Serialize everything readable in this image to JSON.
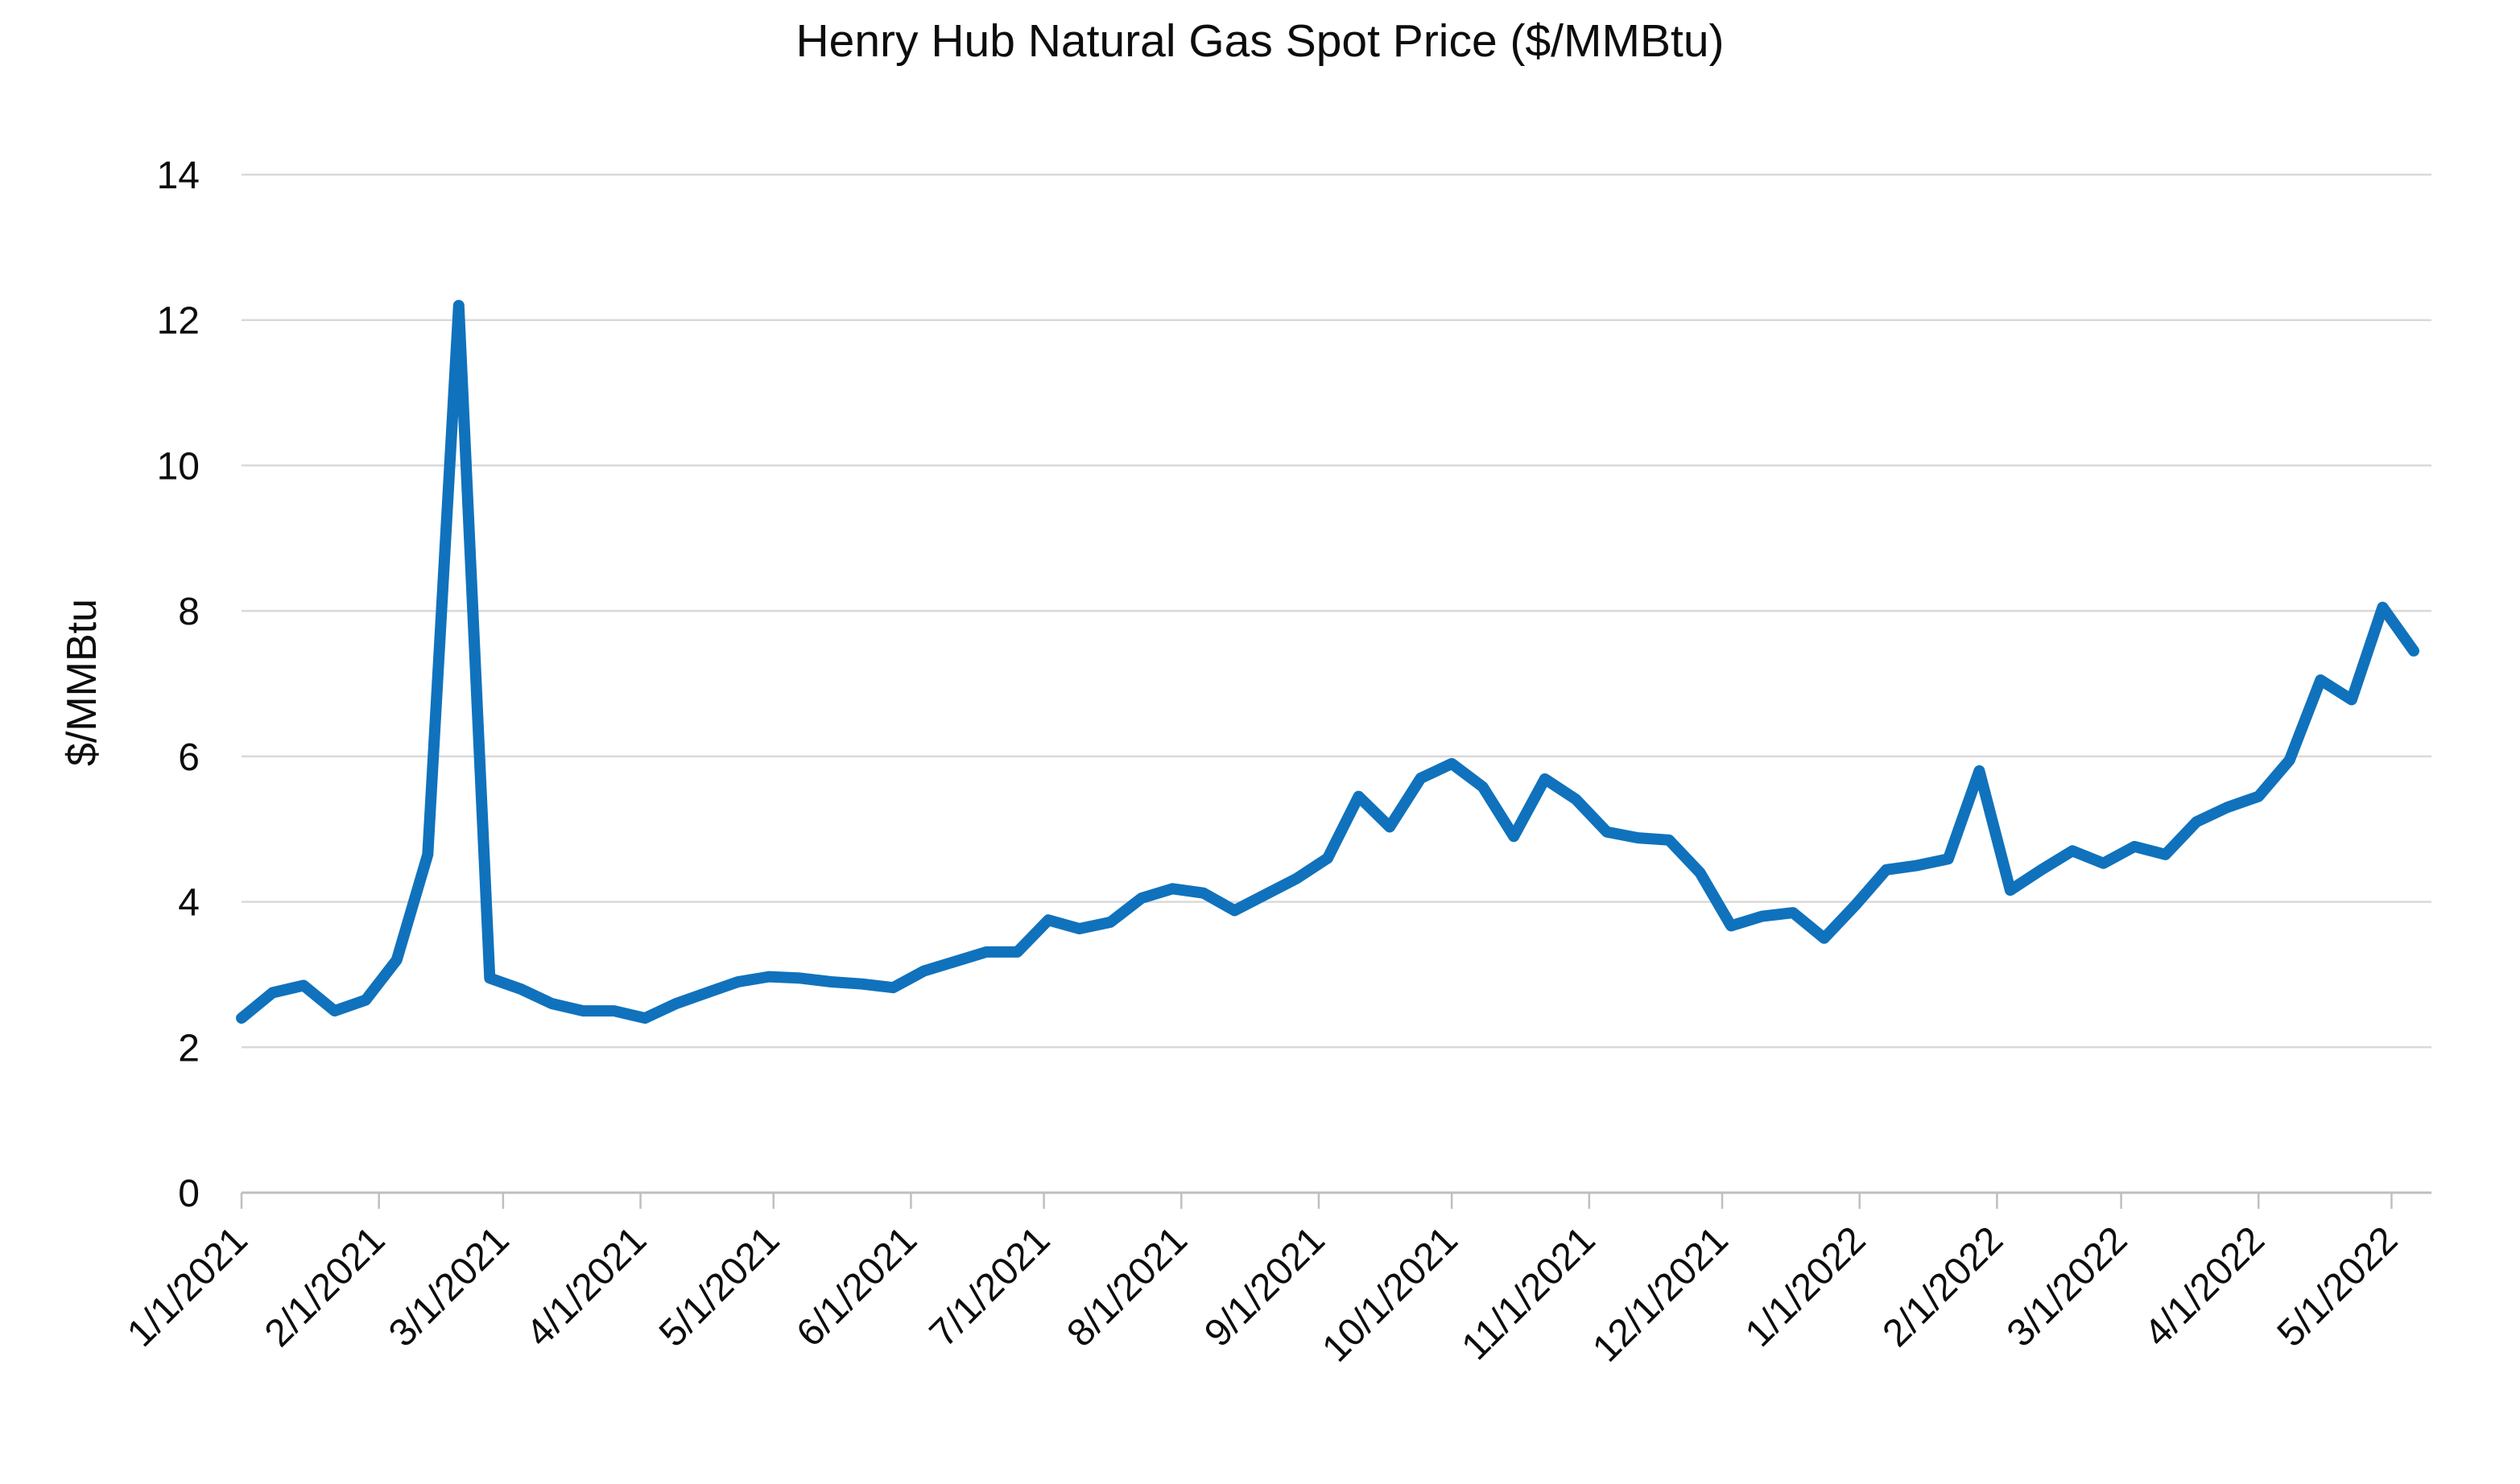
{
  "chart_data": {
    "type": "line",
    "title": "Henry Hub Natural Gas Spot Price ($/MMBtu)",
    "ylabel": "$/MMBtu",
    "xlabel": "",
    "ylim": [
      0,
      14
    ],
    "yticks": [
      0,
      2,
      4,
      6,
      8,
      10,
      12,
      14
    ],
    "grid": true,
    "legend_position": "none",
    "series_name": "Henry Hub natural gas spot price",
    "line_color": "#1072BC",
    "gridline_color": "#D9D9D9",
    "axis_color": "#BFBFBF",
    "xtick_labels": [
      "1/1/2021",
      "2/1/2021",
      "3/1/2021",
      "4/1/2021",
      "5/1/2021",
      "6/1/2021",
      "7/1/2021",
      "8/1/2021",
      "9/1/2021",
      "10/1/2021",
      "11/1/2021",
      "12/1/2021",
      "1/1/2022",
      "2/1/2022",
      "3/1/2022",
      "4/1/2022",
      "5/1/2022"
    ],
    "x": [
      "1/1/2021",
      "1/8/2021",
      "1/15/2021",
      "1/22/2021",
      "1/29/2021",
      "2/5/2021",
      "2/12/2021",
      "2/19/2021",
      "2/26/2021",
      "3/5/2021",
      "3/12/2021",
      "3/19/2021",
      "3/26/2021",
      "4/2/2021",
      "4/9/2021",
      "4/16/2021",
      "4/23/2021",
      "4/30/2021",
      "5/7/2021",
      "5/14/2021",
      "5/21/2021",
      "5/28/2021",
      "6/4/2021",
      "6/11/2021",
      "6/18/2021",
      "6/25/2021",
      "7/2/2021",
      "7/9/2021",
      "7/16/2021",
      "7/23/2021",
      "7/30/2021",
      "8/6/2021",
      "8/13/2021",
      "8/20/2021",
      "8/27/2021",
      "9/3/2021",
      "9/10/2021",
      "9/17/2021",
      "9/24/2021",
      "10/1/2021",
      "10/8/2021",
      "10/15/2021",
      "10/22/2021",
      "10/29/2021",
      "11/5/2021",
      "11/12/2021",
      "11/19/2021",
      "11/26/2021",
      "12/3/2021",
      "12/10/2021",
      "12/17/2021",
      "12/24/2021",
      "12/31/2021",
      "1/7/2022",
      "1/14/2022",
      "1/21/2022",
      "1/28/2022",
      "2/4/2022",
      "2/11/2022",
      "2/18/2022",
      "2/25/2022",
      "3/4/2022",
      "3/11/2022",
      "3/18/2022",
      "3/25/2022",
      "4/1/2022",
      "4/8/2022",
      "4/15/2022",
      "4/22/2022",
      "4/29/2022",
      "5/6/2022"
    ],
    "values": [
      2.4,
      2.75,
      2.85,
      2.5,
      2.65,
      3.2,
      4.65,
      12.2,
      2.95,
      2.8,
      2.6,
      2.5,
      2.5,
      2.4,
      2.6,
      2.75,
      2.9,
      2.97,
      2.95,
      2.9,
      2.87,
      2.82,
      3.05,
      3.18,
      3.31,
      3.31,
      3.75,
      3.63,
      3.72,
      4.05,
      4.18,
      4.12,
      3.88,
      4.1,
      4.32,
      4.6,
      5.45,
      5.03,
      5.7,
      5.9,
      5.58,
      4.9,
      5.69,
      5.41,
      4.96,
      4.88,
      4.85,
      4.4,
      3.67,
      3.8,
      3.85,
      3.5,
      3.95,
      4.44,
      4.5,
      4.59,
      5.8,
      4.16,
      4.44,
      4.7,
      4.53,
      4.76,
      4.65,
      5.1,
      5.3,
      5.45,
      5.95,
      7.05,
      6.78,
      8.05,
      7.45
    ]
  }
}
